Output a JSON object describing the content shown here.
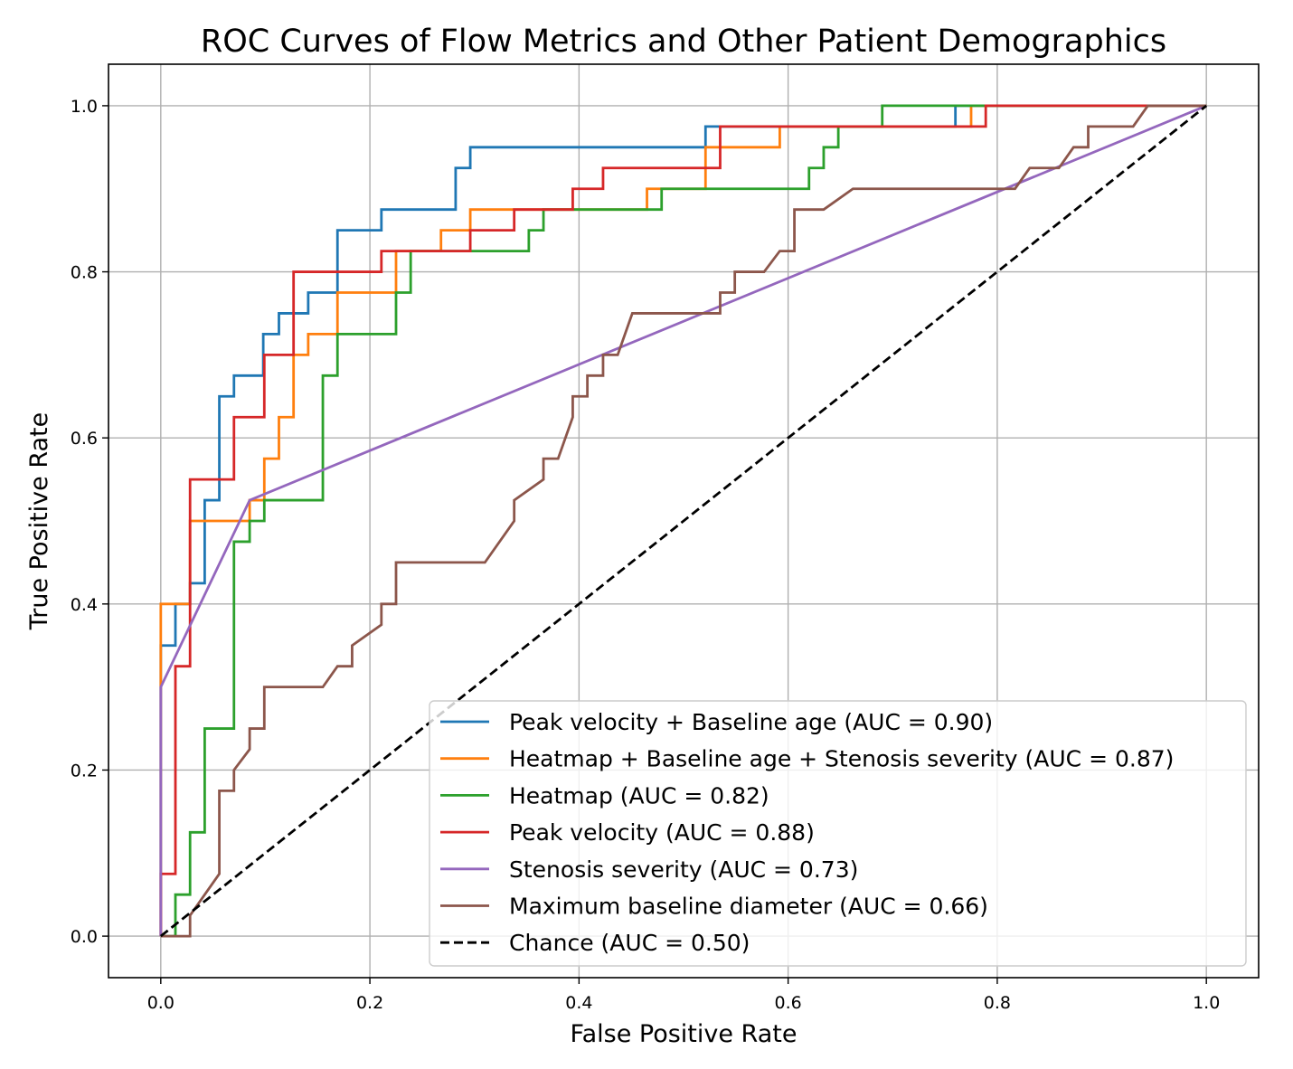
{
  "chart_data": {
    "type": "line",
    "title": "ROC Curves of Flow Metrics and Other Patient Demographics",
    "xlabel": "False Positive Rate",
    "ylabel": "True Positive Rate",
    "xlim": [
      -0.05,
      1.05
    ],
    "ylim": [
      -0.05,
      1.05
    ],
    "xticks": [
      "0.0",
      "0.2",
      "0.4",
      "0.6",
      "0.8",
      "1.0"
    ],
    "yticks": [
      "0.0",
      "0.2",
      "0.4",
      "0.6",
      "0.8",
      "1.0"
    ],
    "grid": true,
    "legend_position": "lower-right",
    "series": [
      {
        "name": "Peak velocity + Baseline age (AUC = 0.90)",
        "color": "#1f77b4",
        "style": "step",
        "x": [
          0,
          0,
          0.014,
          0.014,
          0.028,
          0.028,
          0.042,
          0.042,
          0.056,
          0.056,
          0.07,
          0.07,
          0.098,
          0.098,
          0.113,
          0.113,
          0.141,
          0.141,
          0.169,
          0.169,
          0.211,
          0.211,
          0.282,
          0.282,
          0.296,
          0.296,
          0.521,
          0.521,
          0.76,
          0.76,
          1.0
        ],
        "y": [
          0,
          0.35,
          0.35,
          0.4,
          0.4,
          0.425,
          0.425,
          0.525,
          0.525,
          0.65,
          0.65,
          0.675,
          0.675,
          0.725,
          0.725,
          0.75,
          0.75,
          0.775,
          0.775,
          0.85,
          0.85,
          0.875,
          0.875,
          0.925,
          0.925,
          0.95,
          0.95,
          0.975,
          0.975,
          1.0,
          1.0
        ]
      },
      {
        "name": "Heatmap + Baseline age + Stenosis severity (AUC = 0.87)",
        "color": "#ff7f0e",
        "style": "step",
        "x": [
          0,
          0,
          0.028,
          0.028,
          0.085,
          0.085,
          0.099,
          0.099,
          0.113,
          0.113,
          0.127,
          0.127,
          0.141,
          0.141,
          0.169,
          0.169,
          0.225,
          0.225,
          0.268,
          0.268,
          0.296,
          0.296,
          0.338,
          0.338,
          0.465,
          0.465,
          0.493,
          0.493,
          0.521,
          0.521,
          0.592,
          0.592,
          0.775,
          0.775,
          1.0
        ],
        "y": [
          0,
          0.4,
          0.4,
          0.5,
          0.5,
          0.525,
          0.525,
          0.575,
          0.575,
          0.625,
          0.625,
          0.7,
          0.7,
          0.725,
          0.725,
          0.775,
          0.775,
          0.825,
          0.825,
          0.85,
          0.85,
          0.875,
          0.875,
          0.875,
          0.875,
          0.9,
          0.9,
          0.9,
          0.9,
          0.95,
          0.95,
          0.975,
          0.975,
          1.0,
          1.0
        ]
      },
      {
        "name": "Heatmap (AUC = 0.82)",
        "color": "#2ca02c",
        "style": "step",
        "x": [
          0,
          0.014,
          0.014,
          0.028,
          0.028,
          0.042,
          0.042,
          0.07,
          0.07,
          0.085,
          0.085,
          0.099,
          0.099,
          0.155,
          0.155,
          0.169,
          0.169,
          0.225,
          0.225,
          0.239,
          0.239,
          0.352,
          0.352,
          0.366,
          0.366,
          0.479,
          0.479,
          0.62,
          0.62,
          0.634,
          0.634,
          0.648,
          0.648,
          0.69,
          0.69,
          1.0
        ],
        "y": [
          0,
          0,
          0.05,
          0.05,
          0.125,
          0.125,
          0.25,
          0.25,
          0.475,
          0.475,
          0.5,
          0.5,
          0.525,
          0.525,
          0.675,
          0.675,
          0.725,
          0.725,
          0.775,
          0.775,
          0.825,
          0.825,
          0.85,
          0.85,
          0.875,
          0.875,
          0.9,
          0.9,
          0.925,
          0.925,
          0.95,
          0.95,
          0.975,
          0.975,
          1.0,
          1.0
        ]
      },
      {
        "name": "Peak velocity (AUC = 0.88)",
        "color": "#d62728",
        "style": "step",
        "x": [
          0,
          0,
          0.014,
          0.014,
          0.028,
          0.028,
          0.07,
          0.07,
          0.099,
          0.099,
          0.127,
          0.127,
          0.211,
          0.211,
          0.296,
          0.296,
          0.338,
          0.338,
          0.394,
          0.394,
          0.423,
          0.423,
          0.535,
          0.535,
          0.789,
          0.789,
          1.0
        ],
        "y": [
          0,
          0.075,
          0.075,
          0.325,
          0.325,
          0.55,
          0.55,
          0.625,
          0.625,
          0.7,
          0.7,
          0.8,
          0.8,
          0.825,
          0.825,
          0.85,
          0.85,
          0.875,
          0.875,
          0.9,
          0.9,
          0.925,
          0.925,
          0.975,
          0.975,
          1.0,
          1.0
        ]
      },
      {
        "name": "Stenosis severity (AUC = 0.73)",
        "color": "#9467bd",
        "style": "linear",
        "x": [
          0,
          0,
          0.085,
          1.0
        ],
        "y": [
          0,
          0.3,
          0.525,
          1.0
        ]
      },
      {
        "name": "Maximum baseline diameter (AUC = 0.66)",
        "color": "#8c564b",
        "style": "linear",
        "x": [
          0,
          0.028,
          0.028,
          0.042,
          0.056,
          0.056,
          0.07,
          0.07,
          0.085,
          0.085,
          0.099,
          0.099,
          0.155,
          0.169,
          0.183,
          0.183,
          0.211,
          0.211,
          0.225,
          0.225,
          0.31,
          0.338,
          0.338,
          0.366,
          0.366,
          0.38,
          0.394,
          0.394,
          0.408,
          0.408,
          0.423,
          0.423,
          0.437,
          0.451,
          0.535,
          0.535,
          0.549,
          0.549,
          0.577,
          0.592,
          0.606,
          0.606,
          0.634,
          0.662,
          0.817,
          0.831,
          0.859,
          0.873,
          0.887,
          0.887,
          0.93,
          0.944,
          1.0
        ],
        "y": [
          0,
          0,
          0.025,
          0.05,
          0.075,
          0.175,
          0.175,
          0.2,
          0.225,
          0.25,
          0.25,
          0.3,
          0.3,
          0.325,
          0.325,
          0.35,
          0.375,
          0.4,
          0.4,
          0.45,
          0.45,
          0.5,
          0.525,
          0.55,
          0.575,
          0.575,
          0.625,
          0.65,
          0.65,
          0.675,
          0.675,
          0.7,
          0.7,
          0.75,
          0.75,
          0.775,
          0.775,
          0.8,
          0.8,
          0.825,
          0.825,
          0.875,
          0.875,
          0.9,
          0.9,
          0.925,
          0.925,
          0.95,
          0.95,
          0.975,
          0.975,
          1.0,
          1.0
        ]
      },
      {
        "name": "Chance (AUC = 0.50)",
        "color": "#000000",
        "style": "linear",
        "dashed": true,
        "x": [
          0,
          1.0
        ],
        "y": [
          0,
          1.0
        ]
      }
    ]
  }
}
